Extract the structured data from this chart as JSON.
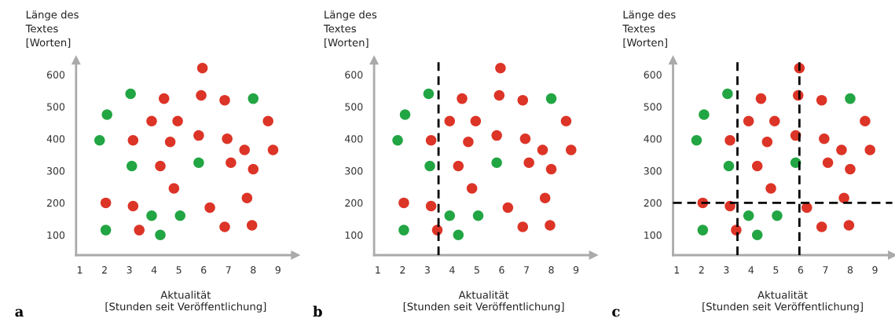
{
  "chart_data": [
    {
      "type": "scatter",
      "xlabel": "Aktualität\n[Stunden seit Veröffentlichung]",
      "ylabel": "Länge des\nTextes\n[Worten]",
      "annotations": [
        "a"
      ],
      "xlim": [
        0.85,
        9.7
      ],
      "ylim": [
        37,
        645
      ],
      "xticks": [
        1,
        2,
        3,
        4,
        5,
        6,
        7,
        8,
        9
      ],
      "yticks": [
        100,
        200,
        300,
        400,
        500,
        600
      ],
      "marker": "circle",
      "grid": false,
      "legend": false,
      "series": [
        {
          "color": "#22a543",
          "x": [
            3.05,
            2.1,
            1.8,
            3.1,
            2.05,
            3.9,
            4.25,
            5.05,
            5.8,
            8.0
          ],
          "values": [
            540,
            475,
            395,
            315,
            115,
            160,
            100,
            160,
            325,
            525
          ]
        },
        {
          "color": "#dc3427",
          "x": [
            5.95,
            4.4,
            5.9,
            6.85,
            3.9,
            4.95,
            8.6,
            3.15,
            4.65,
            5.8,
            6.95,
            7.65,
            8.8,
            4.25,
            7.1,
            8.0,
            4.8,
            2.05,
            3.15,
            7.75,
            6.25,
            3.4,
            6.85,
            7.95
          ],
          "values": [
            620,
            525,
            535,
            520,
            455,
            455,
            455,
            395,
            390,
            410,
            400,
            365,
            365,
            315,
            325,
            305,
            245,
            200,
            190,
            215,
            185,
            115,
            125,
            130
          ]
        }
      ]
    },
    {
      "type": "scatter",
      "xlabel": "Aktualität\n[Stunden seit Veröffentlichung]",
      "ylabel": "Länge des\nTextes\n[Worten]",
      "annotations": [
        "b"
      ],
      "xlim": [
        0.85,
        9.7
      ],
      "ylim": [
        37,
        645
      ],
      "xticks": [
        1,
        2,
        3,
        4,
        5,
        6,
        7,
        8,
        9
      ],
      "yticks": [
        100,
        200,
        300,
        400,
        500,
        600
      ],
      "marker": "circle",
      "grid": false,
      "legend": false,
      "ref_lines": [
        {
          "axis": "x",
          "value": 3.45,
          "color": "#000000",
          "line_style": "dashed"
        }
      ],
      "series": [
        {
          "color": "#22a543",
          "x": [
            3.05,
            2.1,
            1.8,
            3.1,
            2.05,
            3.9,
            4.25,
            5.05,
            5.8,
            8.0
          ],
          "values": [
            540,
            475,
            395,
            315,
            115,
            160,
            100,
            160,
            325,
            525
          ]
        },
        {
          "color": "#dc3427",
          "x": [
            5.95,
            4.4,
            5.9,
            6.85,
            3.9,
            4.95,
            8.6,
            3.15,
            4.65,
            5.8,
            6.95,
            7.65,
            8.8,
            4.25,
            7.1,
            8.0,
            4.8,
            2.05,
            3.15,
            7.75,
            6.25,
            3.4,
            6.85,
            7.95
          ],
          "values": [
            620,
            525,
            535,
            520,
            455,
            455,
            455,
            395,
            390,
            410,
            400,
            365,
            365,
            315,
            325,
            305,
            245,
            200,
            190,
            215,
            185,
            115,
            125,
            130
          ]
        }
      ]
    },
    {
      "type": "scatter",
      "xlabel": "Aktualität\n[Stunden seit Veröffentlichung]",
      "ylabel": "Länge des\nTextes\n[Worten]",
      "annotations": [
        "c"
      ],
      "xlim": [
        0.85,
        9.7
      ],
      "ylim": [
        37,
        645
      ],
      "xticks": [
        1,
        2,
        3,
        4,
        5,
        6,
        7,
        8,
        9
      ],
      "yticks": [
        100,
        200,
        300,
        400,
        500,
        600
      ],
      "marker": "circle",
      "grid": false,
      "legend": false,
      "ref_lines": [
        {
          "axis": "x",
          "value": 3.45,
          "color": "#000000",
          "line_style": "dashed"
        },
        {
          "axis": "x",
          "value": 5.95,
          "color": "#000000",
          "line_style": "dashed"
        },
        {
          "axis": "y",
          "value": 200,
          "color": "#000000",
          "line_style": "dashed"
        }
      ],
      "series": [
        {
          "color": "#22a543",
          "x": [
            3.05,
            2.1,
            1.8,
            3.1,
            2.05,
            3.9,
            4.25,
            5.05,
            5.8,
            8.0
          ],
          "values": [
            540,
            475,
            395,
            315,
            115,
            160,
            100,
            160,
            325,
            525
          ]
        },
        {
          "color": "#dc3427",
          "x": [
            5.95,
            4.4,
            5.9,
            6.85,
            3.9,
            4.95,
            8.6,
            3.15,
            4.65,
            5.8,
            6.95,
            7.65,
            8.8,
            4.25,
            7.1,
            8.0,
            4.8,
            2.05,
            3.15,
            7.75,
            6.25,
            3.4,
            6.85,
            7.95
          ],
          "values": [
            620,
            525,
            535,
            520,
            455,
            455,
            455,
            395,
            390,
            410,
            400,
            365,
            365,
            315,
            325,
            305,
            245,
            200,
            190,
            215,
            185,
            115,
            125,
            130
          ]
        }
      ]
    }
  ]
}
